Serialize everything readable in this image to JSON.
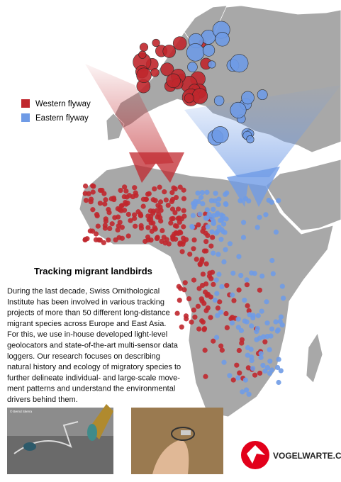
{
  "legend": {
    "items": [
      {
        "label": "Western flyway",
        "color": "#c0272d"
      },
      {
        "label": "Eastern flyway",
        "color": "#6f9be6"
      }
    ]
  },
  "article": {
    "title": "Tracking migrant landbirds",
    "lines": [
      "During the last decade, Swiss Ornithological",
      "Institute has been involved in various tracking",
      "projects of more than 50 different long-distance",
      "migrant species across Europe and East Asia.",
      "For this, we use in-house developed light-level",
      "geolocators and state-of-the-art multi-sensor data",
      "loggers. Our research focuses on describing",
      "natural history and ecology of migratory species to",
      "further delineate individual- and large-scale move-",
      "ment patterns and understand the environmental",
      "drivers behind them."
    ]
  },
  "photo": {
    "credit": "© Bernd Skerra"
  },
  "logo": {
    "text": "VOGELWARTE.CH"
  }
}
